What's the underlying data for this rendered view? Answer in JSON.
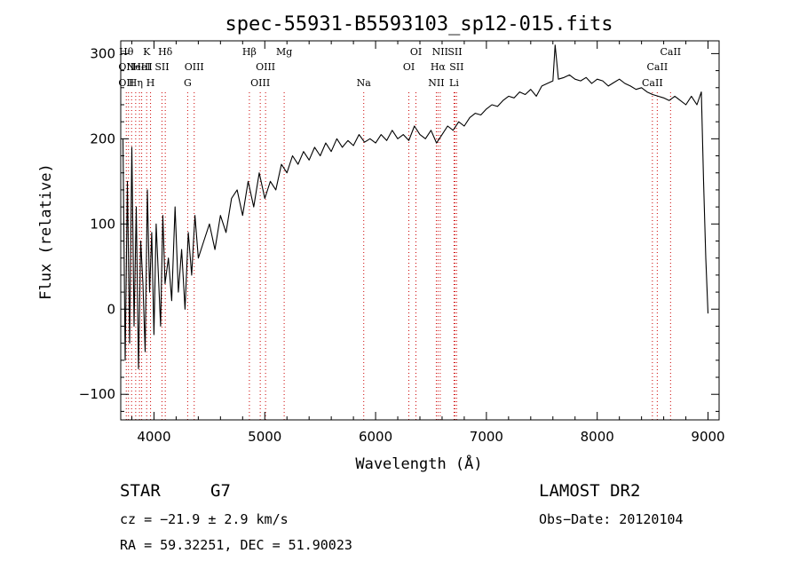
{
  "chart_data": {
    "type": "line",
    "title": "spec-55931-B5593103_sp12-015.fits",
    "xlabel": "Wavelength (Å)",
    "ylabel": "Flux (relative)",
    "xlim": [
      3700,
      9100
    ],
    "ylim": [
      -130,
      315
    ],
    "x_ticks": [
      4000,
      5000,
      6000,
      7000,
      8000,
      9000
    ],
    "y_ticks": [
      -100,
      0,
      100,
      200,
      300
    ],
    "line_color": "#000000",
    "marker_color": "#cc0000",
    "series": [
      {
        "name": "flux",
        "x": [
          3720,
          3740,
          3760,
          3780,
          3800,
          3820,
          3840,
          3860,
          3880,
          3900,
          3920,
          3940,
          3960,
          3980,
          4000,
          4020,
          4040,
          4060,
          4080,
          4100,
          4130,
          4160,
          4190,
          4220,
          4250,
          4280,
          4310,
          4340,
          4370,
          4400,
          4450,
          4500,
          4550,
          4600,
          4650,
          4700,
          4750,
          4800,
          4850,
          4900,
          4950,
          5000,
          5050,
          5100,
          5150,
          5200,
          5250,
          5300,
          5350,
          5400,
          5450,
          5500,
          5550,
          5600,
          5650,
          5700,
          5750,
          5800,
          5850,
          5900,
          5950,
          6000,
          6050,
          6100,
          6150,
          6200,
          6250,
          6300,
          6350,
          6400,
          6450,
          6500,
          6550,
          6600,
          6650,
          6700,
          6750,
          6800,
          6850,
          6900,
          6950,
          7000,
          7050,
          7100,
          7150,
          7200,
          7250,
          7300,
          7350,
          7400,
          7450,
          7500,
          7550,
          7600,
          7620,
          7650,
          7700,
          7750,
          7800,
          7850,
          7900,
          7950,
          8000,
          8050,
          8100,
          8150,
          8200,
          8250,
          8300,
          8350,
          8400,
          8450,
          8500,
          8550,
          8600,
          8650,
          8700,
          8750,
          8800,
          8850,
          8900,
          8940,
          8960,
          8980,
          9000
        ],
        "values": [
          200,
          -60,
          150,
          -40,
          190,
          -20,
          120,
          -70,
          80,
          30,
          -50,
          140,
          20,
          90,
          -30,
          100,
          40,
          -20,
          110,
          30,
          60,
          10,
          120,
          20,
          70,
          0,
          90,
          40,
          110,
          60,
          80,
          100,
          70,
          110,
          90,
          130,
          140,
          110,
          150,
          120,
          160,
          130,
          150,
          140,
          170,
          160,
          180,
          170,
          185,
          175,
          190,
          180,
          195,
          185,
          200,
          190,
          198,
          192,
          205,
          196,
          200,
          195,
          205,
          198,
          210,
          200,
          205,
          198,
          215,
          205,
          200,
          210,
          195,
          205,
          215,
          210,
          220,
          215,
          225,
          230,
          228,
          235,
          240,
          238,
          245,
          250,
          248,
          255,
          252,
          258,
          250,
          262,
          265,
          268,
          310,
          270,
          272,
          275,
          270,
          268,
          272,
          265,
          270,
          268,
          262,
          266,
          270,
          265,
          262,
          258,
          260,
          255,
          252,
          250,
          248,
          245,
          250,
          245,
          240,
          250,
          240,
          255,
          150,
          60,
          -5
        ]
      }
    ],
    "line_markers": [
      {
        "x": 3750,
        "row1": "Hθ",
        "row2": "OII",
        "row3": "OII"
      },
      {
        "x": 3770,
        "row1": "",
        "row2": "",
        "row3": ""
      },
      {
        "x": 3798,
        "row1": "",
        "row2": "",
        "row3": ""
      },
      {
        "x": 3835,
        "row1": "",
        "row2": "",
        "row3": "Hη"
      },
      {
        "x": 3869,
        "row1": "",
        "row2": "NeIII",
        "row3": ""
      },
      {
        "x": 3889,
        "row1": "",
        "row2": "HeI",
        "row3": ""
      },
      {
        "x": 3934,
        "row1": "K",
        "row2": "",
        "row3": ""
      },
      {
        "x": 3969,
        "row1": "",
        "row2": "",
        "row3": "H"
      },
      {
        "x": 4072,
        "row1": "",
        "row2": "SII",
        "row3": ""
      },
      {
        "x": 4102,
        "row1": "Hδ",
        "row2": "",
        "row3": ""
      },
      {
        "x": 4304,
        "row1": "",
        "row2": "",
        "row3": "G"
      },
      {
        "x": 4363,
        "row1": "",
        "row2": "OIII",
        "row3": ""
      },
      {
        "x": 4861,
        "row1": "Hβ",
        "row2": "",
        "row3": ""
      },
      {
        "x": 4959,
        "row1": "",
        "row2": "",
        "row3": "OIII"
      },
      {
        "x": 5007,
        "row1": "",
        "row2": "OIII",
        "row3": ""
      },
      {
        "x": 5175,
        "row1": "Mg",
        "row2": "",
        "row3": ""
      },
      {
        "x": 5893,
        "row1": "",
        "row2": "",
        "row3": "Na"
      },
      {
        "x": 6300,
        "row1": "",
        "row2": "OI",
        "row3": ""
      },
      {
        "x": 6364,
        "row1": "OI",
        "row2": "",
        "row3": ""
      },
      {
        "x": 6548,
        "row1": "",
        "row2": "",
        "row3": "NII"
      },
      {
        "x": 6563,
        "row1": "",
        "row2": "Hα",
        "row3": ""
      },
      {
        "x": 6583,
        "row1": "NII",
        "row2": "",
        "row3": ""
      },
      {
        "x": 6708,
        "row1": "",
        "row2": "",
        "row3": "Li"
      },
      {
        "x": 6716,
        "row1": "SII",
        "row2": "",
        "row3": ""
      },
      {
        "x": 6731,
        "row1": "",
        "row2": "SII",
        "row3": ""
      },
      {
        "x": 8498,
        "row1": "",
        "row2": "",
        "row3": "CaII"
      },
      {
        "x": 8542,
        "row1": "",
        "row2": "CaII",
        "row3": ""
      },
      {
        "x": 8662,
        "row1": "CaII",
        "row2": "",
        "row3": ""
      }
    ]
  },
  "info": {
    "object_class": "STAR",
    "subclass": "G7",
    "survey": "LAMOST DR2",
    "redshift": "cz = −21.9 ± 2.9 km/s",
    "obs_date": "Obs−Date: 20120104",
    "coords": "RA =  59.32251, DEC =  51.90023"
  }
}
